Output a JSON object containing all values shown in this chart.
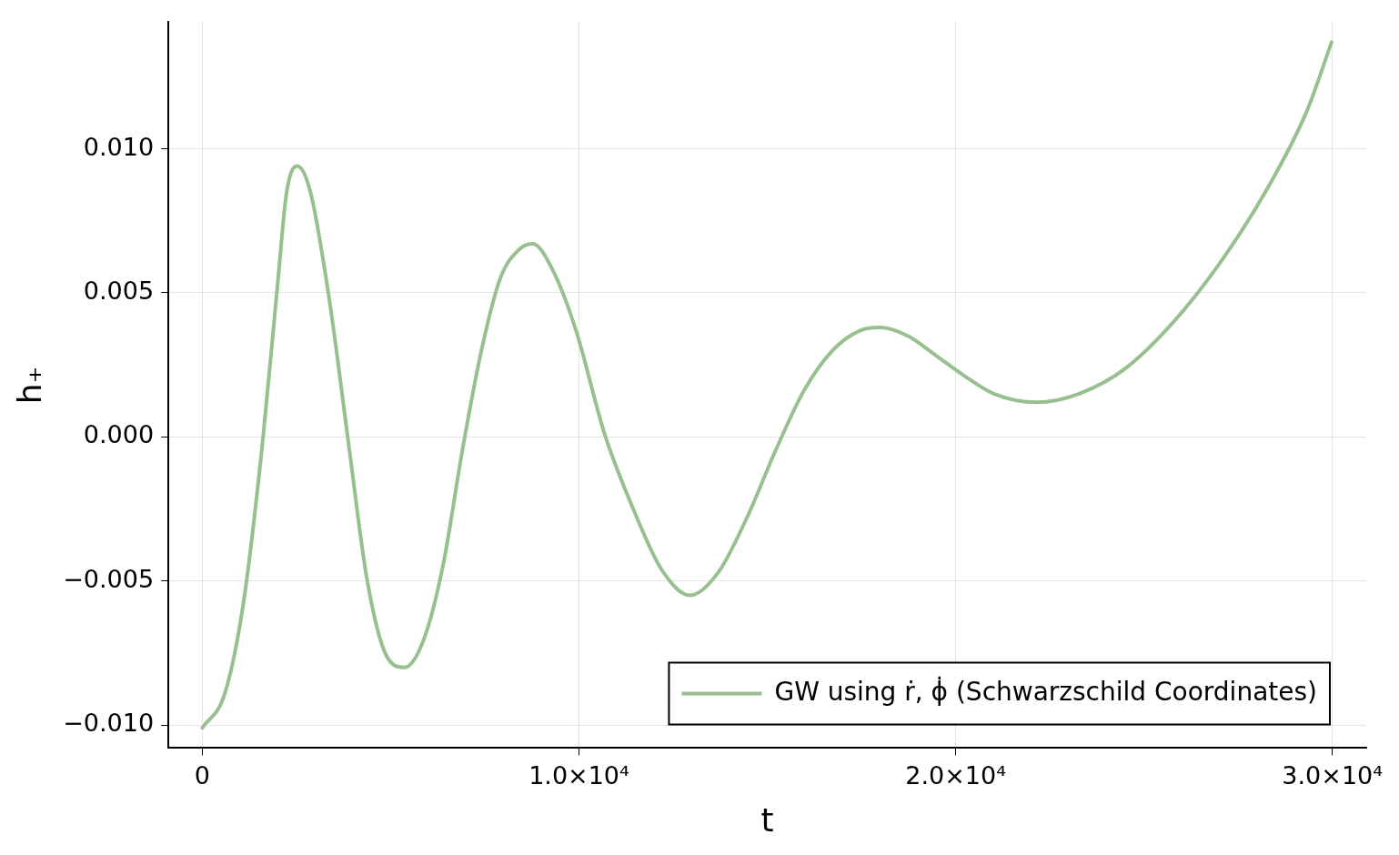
{
  "chart_data": {
    "type": "line",
    "xlabel": "t",
    "ylabel": "h₊",
    "xlim": [
      -900,
      30900
    ],
    "ylim": [
      -0.0108,
      0.0144
    ],
    "xticks": [
      0,
      {
        "value": 10000,
        "label": "1.0×10⁴"
      },
      {
        "value": 20000,
        "label": "2.0×10⁴"
      },
      {
        "value": 30000,
        "label": "3.0×10⁴"
      }
    ],
    "yticks": [
      {
        "value": -0.01,
        "label": "−0.010"
      },
      {
        "value": -0.005,
        "label": "−0.005"
      },
      {
        "value": 0,
        "label": "0.000"
      },
      {
        "value": 0.005,
        "label": "0.005"
      },
      {
        "value": 0.01,
        "label": "0.010"
      }
    ],
    "grid": true,
    "legend": "bottom right",
    "marker": "none",
    "line_style": "solid",
    "series": [
      {
        "name": "GW using ṙ, ϕ̇ (Schwarzschild Coordinates)",
        "color": "#98bf8f",
        "x": [
          0,
          600,
          1100,
          1600,
          2000,
          2240,
          2520,
          2870,
          3380,
          3880,
          4380,
          4890,
          5370,
          5890,
          6400,
          6900,
          7410,
          7910,
          8410,
          8770,
          9300,
          9920,
          10680,
          11440,
          12190,
          12950,
          13700,
          14460,
          15210,
          15970,
          16730,
          17480,
          17990,
          18740,
          19500,
          20250,
          21010,
          22140,
          23280,
          24530,
          25790,
          27050,
          28310,
          29320,
          29980
        ],
        "values": [
          -0.0101,
          -0.0089,
          -0.0057,
          -0.0002,
          0.0053,
          0.0085,
          0.0094,
          0.0085,
          0.0047,
          -0.0002,
          -0.005,
          -0.0076,
          -0.008,
          -0.007,
          -0.0044,
          -0.0005,
          0.003,
          0.0055,
          0.0065,
          0.0067,
          0.0058,
          0.0037,
          0.0001,
          -0.0025,
          -0.0046,
          -0.0055,
          -0.0047,
          -0.0028,
          -0.0005,
          0.0016,
          0.003,
          0.0037,
          0.0038,
          0.0035,
          0.0028,
          0.0021,
          0.0015,
          0.0012,
          0.0015,
          0.0024,
          0.004,
          0.0061,
          0.0087,
          0.0113,
          0.0137
        ]
      }
    ]
  }
}
